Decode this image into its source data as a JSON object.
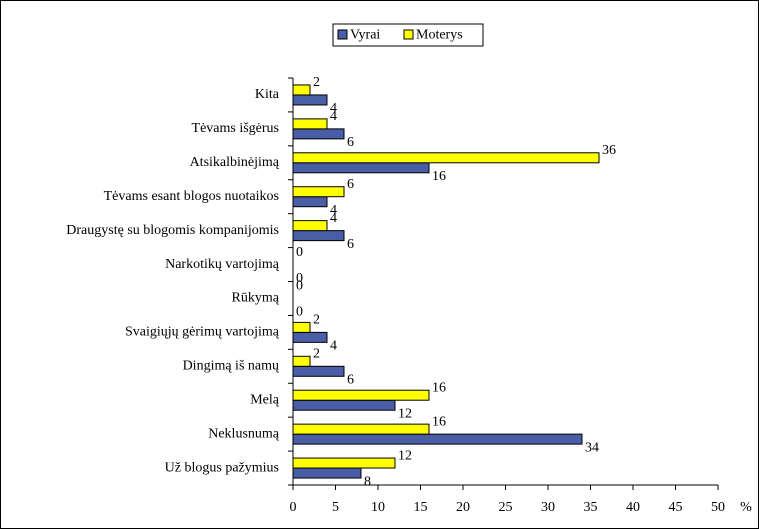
{
  "chart_data": {
    "type": "bar",
    "orientation": "horizontal",
    "categories": [
      "Kita",
      "Tėvams išgėrus",
      "Atsikalbinėjimą",
      "Tėvams esant blogos nuotaikos",
      "Draugystę su blogomis kompanijomis",
      "Narkotikų vartojimą",
      "Rūkymą",
      "Svaigiųjų gėrimų vartojimą",
      "Dingimą iš namų",
      "Melą",
      "Neklusnumą",
      "Už blogus pažymius"
    ],
    "series": [
      {
        "name": "Vyrai",
        "color": "#4a5ea8",
        "values": [
          4,
          6,
          16,
          4,
          6,
          0,
          0,
          4,
          6,
          12,
          34,
          8
        ]
      },
      {
        "name": "Moterys",
        "color": "#ffff00",
        "values": [
          2,
          4,
          36,
          6,
          4,
          0,
          0,
          2,
          2,
          16,
          16,
          12
        ]
      }
    ],
    "xlabel": "%",
    "xlim": [
      0,
      50
    ],
    "xticks": [
      0,
      5,
      10,
      15,
      20,
      25,
      30,
      35,
      40,
      45,
      50
    ],
    "legend": "top"
  }
}
